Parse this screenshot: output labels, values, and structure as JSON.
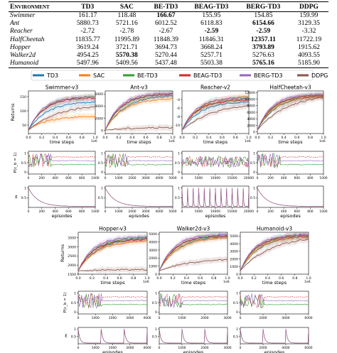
{
  "table": {
    "columns": [
      "Environment",
      "TD3",
      "SAC",
      "BE-TD3",
      "BEAG-TD3",
      "BERG-TD3",
      "DDPG"
    ],
    "rows": [
      {
        "env": "Swimmer",
        "values": [
          "161.17",
          "118.48",
          "166.67",
          "155.95",
          "154.85",
          "159.99"
        ],
        "best": [
          2
        ]
      },
      {
        "env": "Ant",
        "values": [
          "5880.73",
          "5721.16",
          "6012.52",
          "6118.83",
          "6154.66",
          "3129.35"
        ],
        "best": [
          4
        ]
      },
      {
        "env": "Reacher",
        "values": [
          "-2.72",
          "-2.78",
          "-2.67",
          "-2.59",
          "-2.59",
          "-3.32"
        ],
        "best": [
          3,
          4
        ]
      },
      {
        "env": "HalfCheetah",
        "values": [
          "11835.77",
          "11995.89",
          "11848.39",
          "11846.31",
          "12357.11",
          "11722.19"
        ],
        "best": [
          4
        ]
      },
      {
        "env": "Hopper",
        "values": [
          "3619.24",
          "3721.71",
          "3694.73",
          "3668.24",
          "3793.89",
          "1915.62"
        ],
        "best": [
          4
        ]
      },
      {
        "env": "Walker2d",
        "values": [
          "4954.25",
          "5570.38",
          "5270.44",
          "5257.71",
          "5276.63",
          "4093.55"
        ],
        "best": [
          1
        ]
      },
      {
        "env": "Humanoid",
        "values": [
          "5497.96",
          "5409.56",
          "5437.48",
          "5503.38",
          "5765.16",
          "5185.90"
        ],
        "best": [
          4
        ]
      }
    ]
  },
  "legend": {
    "entries": [
      {
        "name": "TD3",
        "color": "#1f77b4"
      },
      {
        "name": "SAC",
        "color": "#ff7f0e"
      },
      {
        "name": "BE-TD3",
        "color": "#2ca02c"
      },
      {
        "name": "BEAG-TD3",
        "color": "#d62728"
      },
      {
        "name": "BERG-TD3",
        "color": "#9467bd"
      },
      {
        "name": "DDPG",
        "color": "#8c564b"
      }
    ]
  },
  "labels": {
    "returns": "Returns",
    "time_steps": "time steps",
    "episodes": "episodes",
    "prob": "P(c_b = 1)",
    "epsilon": "ε",
    "scale": "1e6"
  },
  "chart_data": [
    {
      "id": "swimmer",
      "type": "line",
      "title": "Swimmer-v3",
      "xlabel": "time steps",
      "ylabel": "Returns",
      "xlim": [
        0,
        1000000
      ],
      "ylim": [
        20,
        170
      ],
      "yticks": [
        50,
        100,
        150
      ],
      "xticks": [
        0.0,
        0.2,
        0.4,
        0.6,
        0.8,
        1.0
      ],
      "final": {
        "TD3": 132,
        "SAC": 80,
        "BE-TD3": 150,
        "BEAG-TD3": 145,
        "BERG-TD3": 148,
        "DDPG": 115
      }
    },
    {
      "id": "ant",
      "type": "line",
      "title": "Ant-v3",
      "xlabel": "time steps",
      "ylim": [
        -500,
        6500
      ],
      "yticks": [
        0,
        2000,
        4000,
        6000
      ],
      "xticks": [
        0.0,
        0.2,
        0.4,
        0.6,
        0.8,
        1.0
      ],
      "final": {
        "TD3": 5700,
        "SAC": 5200,
        "BE-TD3": 6000,
        "BEAG-TD3": 5950,
        "BERG-TD3": 6100,
        "DDPG": 500
      }
    },
    {
      "id": "reacher",
      "type": "line",
      "title": "Reacher-v2",
      "xlabel": "time steps",
      "ylim": [
        -12,
        -2
      ],
      "yticks": [
        -10,
        -8,
        -6,
        -4
      ],
      "xticks": [
        0.0,
        0.2,
        0.4,
        0.6,
        0.8,
        1.0
      ],
      "final": {
        "TD3": -4.5,
        "SAC": -3.3,
        "BE-TD3": -3.9,
        "BEAG-TD3": -4.2,
        "BERG-TD3": -3.6,
        "DDPG": -5.5
      }
    },
    {
      "id": "halfcheetah",
      "type": "line",
      "title": "HalfCheetah-v3",
      "xlabel": "time steps",
      "ylim": [
        -500,
        12500
      ],
      "yticks": [
        0,
        2000,
        4000,
        6000,
        8000,
        10000,
        12000
      ],
      "xticks": [
        0.0,
        0.2,
        0.4,
        0.6,
        0.8,
        1.0
      ],
      "final": {
        "TD3": 11000,
        "SAC": 10800,
        "BE-TD3": 11200,
        "BEAG-TD3": 11100,
        "BERG-TD3": 11400,
        "DDPG": 10500
      }
    },
    {
      "id": "hopper",
      "type": "line",
      "title": "Hopper-v3",
      "xlabel": "time steps",
      "ylabel": "Returns",
      "ylim": [
        1500,
        3800
      ],
      "yticks": [
        1500,
        2000,
        2500,
        3000,
        3500
      ],
      "xticks": [
        0.0,
        0.2,
        0.4,
        0.6,
        0.8,
        1.0
      ],
      "final": {
        "TD3": 3450,
        "SAC": 3300,
        "BE-TD3": 3500,
        "BEAG-TD3": 3400,
        "BERG-TD3": 3550,
        "DDPG": 1750
      }
    },
    {
      "id": "walker2d",
      "type": "line",
      "title": "Walker2d-v3",
      "xlabel": "time steps",
      "ylim": [
        0,
        5200
      ],
      "yticks": [
        0,
        1000,
        2000,
        3000,
        4000,
        5000
      ],
      "xticks": [
        0.0,
        0.2,
        0.4,
        0.6,
        0.8,
        1.0
      ],
      "final": {
        "TD3": 4700,
        "SAC": 4500,
        "BE-TD3": 4800,
        "BEAG-TD3": 4750,
        "BERG-TD3": 4900,
        "DDPG": 1800
      }
    },
    {
      "id": "humanoid",
      "type": "line",
      "title": "Humanoid-v3",
      "xlabel": "time steps",
      "ylim": [
        0,
        5500
      ],
      "yticks": [
        0,
        1000,
        2000,
        3000,
        4000,
        5000
      ],
      "xticks": [
        0.0,
        0.2,
        0.4,
        0.6,
        0.8,
        1.0
      ],
      "final": {
        "TD3": 5000,
        "SAC": 4900,
        "BE-TD3": 5100,
        "BEAG-TD3": 5050,
        "BERG-TD3": 5200,
        "DDPG": 4600
      }
    }
  ],
  "prob_panels": [
    {
      "id": "swimmer",
      "xticks": [
        0,
        200,
        400,
        600,
        800,
        1000
      ],
      "yticks": [
        0.0,
        0.5,
        1.0
      ]
    },
    {
      "id": "ant",
      "xticks": [
        0,
        1000,
        2000,
        3000,
        4000,
        5000
      ],
      "yticks": [
        0.0,
        0.5,
        1.0
      ]
    },
    {
      "id": "reacher",
      "xticks": [
        0,
        5000,
        10000,
        15000,
        20000
      ],
      "yticks": [
        0.0,
        0.5,
        1.0
      ]
    },
    {
      "id": "halfcheetah",
      "xticks": [
        0,
        200,
        400,
        600,
        800,
        1000
      ],
      "yticks": [
        0.0,
        0.5,
        1.0
      ]
    },
    {
      "id": "hopper",
      "xticks": [
        0,
        1000,
        2000,
        3000,
        4000
      ],
      "yticks": [
        0.0,
        0.5,
        1.0
      ]
    },
    {
      "id": "walker2d",
      "xticks": [
        0,
        1000,
        2000,
        3000
      ],
      "yticks": [
        0.0,
        0.5,
        1.0
      ]
    },
    {
      "id": "humanoid",
      "xticks": [
        0,
        2000,
        4000,
        6000
      ],
      "yticks": [
        0.0,
        0.5,
        1.0
      ]
    }
  ],
  "eps_panels": [
    {
      "id": "swimmer",
      "xticks": [
        0,
        200,
        400,
        600,
        800,
        1000
      ],
      "yticks": [
        0.5,
        1.0
      ]
    },
    {
      "id": "ant",
      "xticks": [
        0,
        1000,
        2000,
        3000,
        4000,
        5000
      ],
      "yticks": [
        0.5,
        1.0
      ]
    },
    {
      "id": "reacher",
      "xticks": [
        0,
        5000,
        10000,
        15000,
        20000
      ],
      "yticks": [
        0.5,
        1.0
      ]
    },
    {
      "id": "halfcheetah",
      "xticks": [
        0,
        200,
        400,
        600,
        800,
        1000
      ],
      "yticks": [
        0.5,
        1.0
      ]
    },
    {
      "id": "hopper",
      "xticks": [
        0,
        1000,
        2000,
        3000,
        4000
      ],
      "yticks": [
        0.5,
        1.0
      ]
    },
    {
      "id": "walker2d",
      "xticks": [
        0,
        1000,
        2000,
        3000
      ],
      "yticks": [
        0.5,
        1.0
      ]
    },
    {
      "id": "humanoid",
      "xticks": [
        0,
        2000,
        4000,
        6000
      ],
      "yticks": [
        0.5,
        1.0
      ]
    }
  ]
}
